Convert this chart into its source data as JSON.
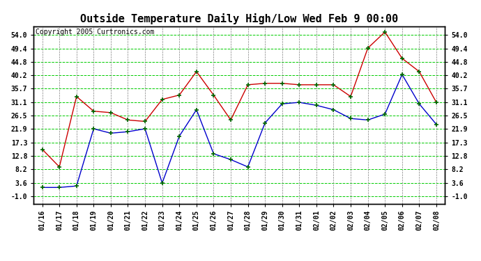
{
  "title": "Outside Temperature Daily High/Low Wed Feb 9 00:00",
  "copyright": "Copyright 2005 Curtronics.com",
  "x_labels": [
    "01/16",
    "01/17",
    "01/18",
    "01/19",
    "01/20",
    "01/21",
    "01/22",
    "01/23",
    "01/24",
    "01/25",
    "01/26",
    "01/27",
    "01/28",
    "01/29",
    "01/30",
    "01/31",
    "02/01",
    "02/02",
    "02/03",
    "02/04",
    "02/05",
    "02/06",
    "02/07",
    "02/08"
  ],
  "high_values": [
    15.0,
    9.0,
    33.0,
    28.0,
    27.5,
    25.0,
    24.5,
    32.0,
    33.5,
    41.5,
    33.5,
    25.0,
    37.0,
    37.5,
    37.5,
    37.0,
    37.0,
    37.0,
    33.0,
    49.5,
    55.0,
    46.0,
    41.5,
    31.0
  ],
  "low_values": [
    2.0,
    2.0,
    2.5,
    22.0,
    20.5,
    21.0,
    22.0,
    3.5,
    19.5,
    28.5,
    13.5,
    11.5,
    9.0,
    24.0,
    30.5,
    31.0,
    30.0,
    28.5,
    25.5,
    25.0,
    27.0,
    40.5,
    30.5,
    23.5
  ],
  "high_color": "#cc0000",
  "low_color": "#0000cc",
  "marker_color": "#006600",
  "bg_color": "#ffffff",
  "plot_bg_color": "#ffffff",
  "grid_color": "#00cc00",
  "grid_color_v": "#808080",
  "y_ticks": [
    -1.0,
    3.6,
    8.2,
    12.8,
    17.3,
    21.9,
    26.5,
    31.1,
    35.7,
    40.2,
    44.8,
    49.4,
    54.0
  ],
  "ylim": [
    -3.5,
    57.0
  ],
  "title_fontsize": 11,
  "tick_fontsize": 7,
  "copyright_fontsize": 7
}
